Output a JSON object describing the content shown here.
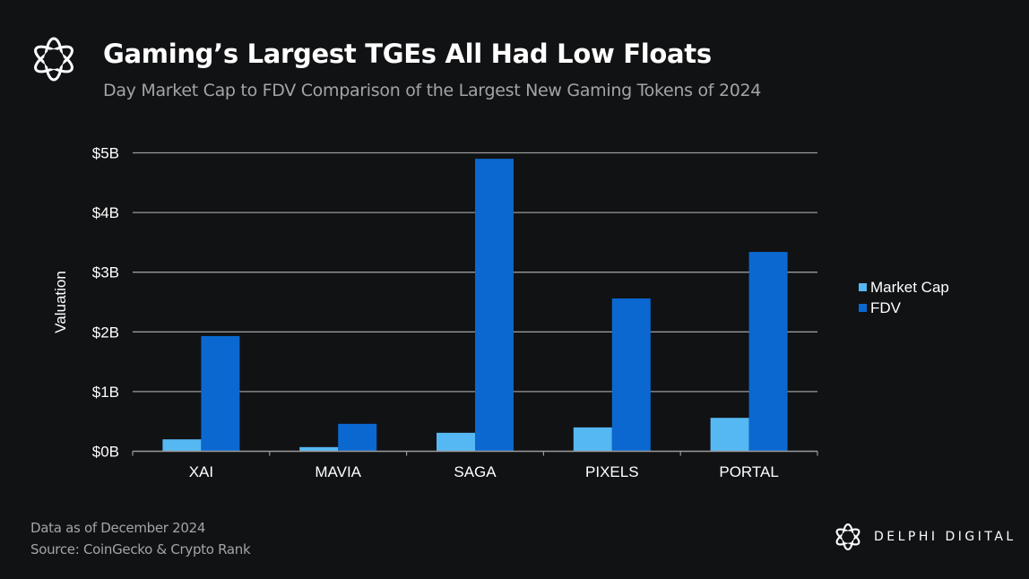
{
  "header": {
    "title": "Gaming’s Largest TGEs All Had Low Floats",
    "subtitle": "Day Market Cap to FDV Comparison of the Largest New Gaming Tokens of 2024",
    "logo_icon": "delphi-knot-icon"
  },
  "footer": {
    "note": "Data as of December 2024",
    "source": "Source: CoinGecko & Crypto Rank"
  },
  "brand": {
    "name": "DELPHI DIGITAL",
    "logo_icon": "delphi-knot-icon"
  },
  "colors": {
    "background": "#111214",
    "market_cap": "#56b8f2",
    "fdv": "#0b68d0",
    "grid": "#9a9a9a",
    "text": "#ffffff",
    "muted": "#a3a4a7"
  },
  "chart_data": {
    "type": "bar",
    "title": "Gaming’s Largest TGEs All Had Low Floats",
    "subtitle": "Day Market Cap to FDV Comparison of the Largest New Gaming Tokens of 2024",
    "xlabel": "",
    "ylabel": "Valuation",
    "unit": "USD billions",
    "categories": [
      "XAI",
      "MAVIA",
      "SAGA",
      "PIXELS",
      "PORTAL"
    ],
    "series": [
      {
        "name": "Market Cap",
        "color": "#56b8f2",
        "values": [
          0.2,
          0.07,
          0.31,
          0.4,
          0.56
        ]
      },
      {
        "name": "FDV",
        "color": "#0b68d0",
        "values": [
          1.93,
          0.46,
          4.9,
          2.56,
          3.34
        ]
      }
    ],
    "ylim": [
      0,
      5
    ],
    "yticks": [
      0,
      1,
      2,
      3,
      4,
      5
    ],
    "ytick_labels": [
      "$0B",
      "$1B",
      "$2B",
      "$3B",
      "$4B",
      "$5B"
    ],
    "grid": true,
    "legend_position": "right"
  }
}
